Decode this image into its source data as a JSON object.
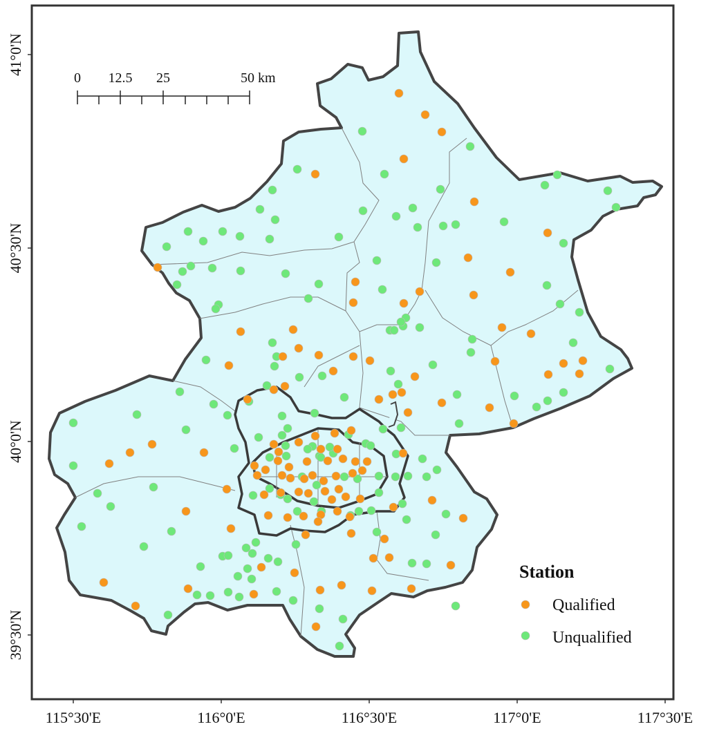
{
  "map": {
    "x_labels": [
      "115°30'E",
      "116°0'E",
      "116°30'E",
      "117°0'E",
      "117°30'E"
    ],
    "y_labels": [
      "41°0'N",
      "40°30'N",
      "40°0'N",
      "39°30'N"
    ],
    "scale_bar": {
      "labels": [
        "0",
        "12.5",
        "25",
        "50 km"
      ],
      "unit": "km"
    },
    "colors": {
      "qualified": "#f7961b",
      "unqualified": "#6ee87a",
      "land": "#dcf8fb",
      "boundary": "#444444"
    },
    "legend": {
      "title": "Station",
      "items": [
        {
          "label": "Qualified",
          "color": "#f7961b"
        },
        {
          "label": "Unqualified",
          "color": "#6ee87a"
        }
      ]
    },
    "station_counts_note": "Stations plotted: qualified (orange) and unqualified (green)"
  }
}
